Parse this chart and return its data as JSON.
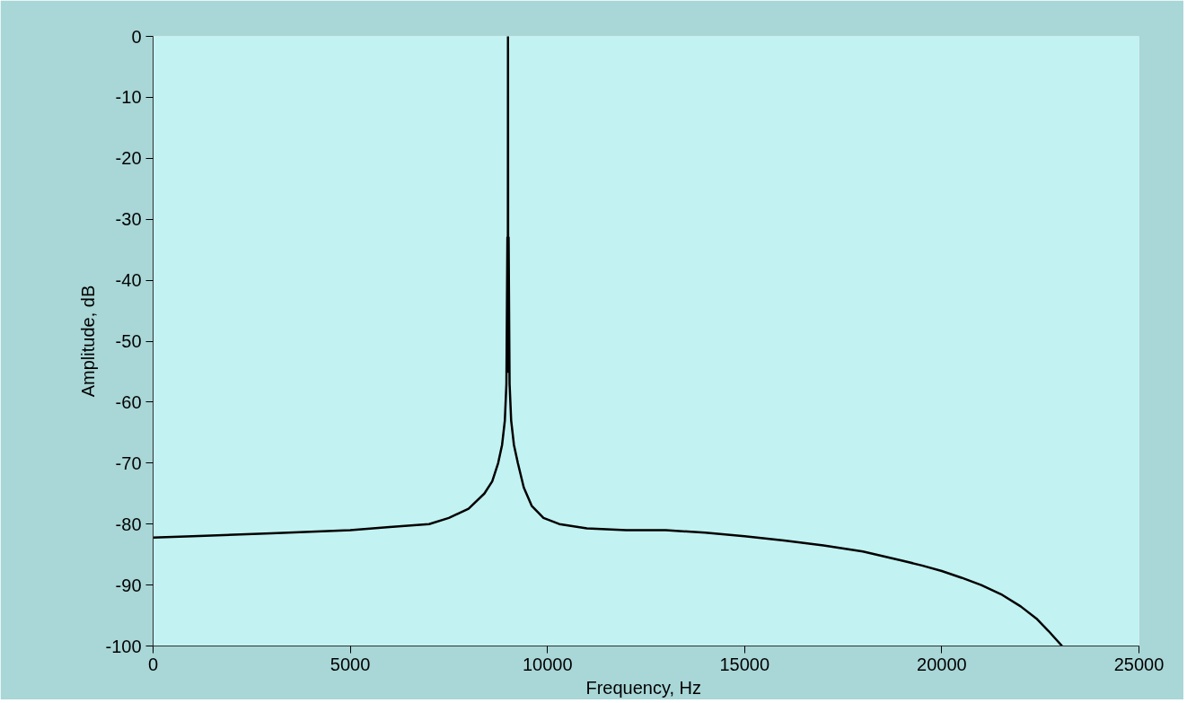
{
  "chart_data": {
    "type": "line",
    "xlabel": "Frequency,  Hz",
    "ylabel": "Amplitude, dB",
    "x": [
      0,
      1000,
      3000,
      5000,
      6000,
      7000,
      7500,
      8000,
      8400,
      8600,
      8750,
      8850,
      8920,
      8960,
      8985,
      8995,
      9000,
      9005,
      9015,
      9040,
      9080,
      9150,
      9250,
      9400,
      9600,
      9900,
      10300,
      11000,
      12000,
      13000,
      14000,
      15000,
      16000,
      17000,
      18000,
      19000,
      19500,
      20000,
      20500,
      21000,
      21500,
      22000,
      22400,
      22700,
      23050
    ],
    "series": [
      {
        "color": "#000000",
        "values": [
          -82.2,
          -82,
          -81.5,
          -81,
          -80.5,
          -80,
          -79,
          -77.5,
          -75,
          -73,
          -70,
          -67,
          -63,
          -57,
          -33,
          -55,
          0,
          -55,
          -33,
          -57,
          -63,
          -67,
          -70,
          -74,
          -77,
          -79,
          -80,
          -80.7,
          -81,
          -81,
          -81.4,
          -82,
          -82.7,
          -83.5,
          -84.5,
          -86,
          -86.8,
          -87.7,
          -88.8,
          -90,
          -91.5,
          -93.5,
          -95.5,
          -97.5,
          -100
        ]
      }
    ],
    "xlim": [
      0,
      25000
    ],
    "xticks": [
      0,
      5000,
      10000,
      15000,
      20000,
      25000
    ],
    "ylim": [
      -100,
      0
    ],
    "yticks": [
      -100,
      -90,
      -80,
      -70,
      -60,
      -50,
      -40,
      -30,
      -20,
      -10,
      0
    ],
    "grid": false,
    "marker": "none",
    "line_style": "solid"
  }
}
